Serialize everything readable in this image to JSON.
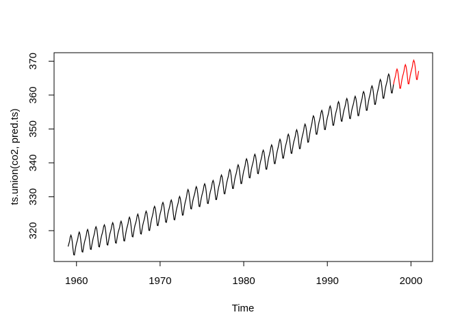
{
  "chart_data": {
    "type": "line",
    "title": "",
    "xlabel": "Time",
    "ylabel": "ts.union(co2, pred.ts)",
    "xticks": [
      1960,
      1970,
      1980,
      1990,
      2000
    ],
    "yticks": [
      320,
      330,
      340,
      350,
      360,
      370
    ],
    "xlim": [
      1957.32,
      2002.59
    ],
    "ylim": [
      310.9,
      372.5
    ],
    "grid": false,
    "legend": "none",
    "background_color": "#ffffff",
    "axis_color": "#000000",
    "seasonal_monthly_offsets": [
      -0.05,
      0.61,
      1.37,
      2.52,
      2.99,
      2.33,
      0.83,
      -1.23,
      -3.09,
      -3.24,
      -2.09,
      -0.94
    ],
    "series": [
      {
        "name": "co2",
        "role": "observed",
        "color": "#000000",
        "start_year": 1959,
        "end_year": 1997,
        "annual_means": [
          315.83,
          316.75,
          317.49,
          318.3,
          318.83,
          319.46,
          319.87,
          321.21,
          322.02,
          322.89,
          324.46,
          325.52,
          326.16,
          327.29,
          329.51,
          330.08,
          330.99,
          331.98,
          333.73,
          335.34,
          336.68,
          338.52,
          339.76,
          340.96,
          342.61,
          344.25,
          345.73,
          346.97,
          348.75,
          351.31,
          352.75,
          353.98,
          355.29,
          356.13,
          356.78,
          358.29,
          360.03,
          361.93,
          363.47
        ]
      },
      {
        "name": "pred.ts",
        "role": "forecast",
        "color": "#FF0000",
        "start_year": 1998,
        "end_year": 2000,
        "annual_means": [
          364.9,
          366.2,
          367.5
        ]
      }
    ],
    "reconstruction": "monthly value = linear interpolation of annual_means (centered mid-year) + seasonal_monthly_offsets[month]; forecast line connects to last observed point"
  }
}
